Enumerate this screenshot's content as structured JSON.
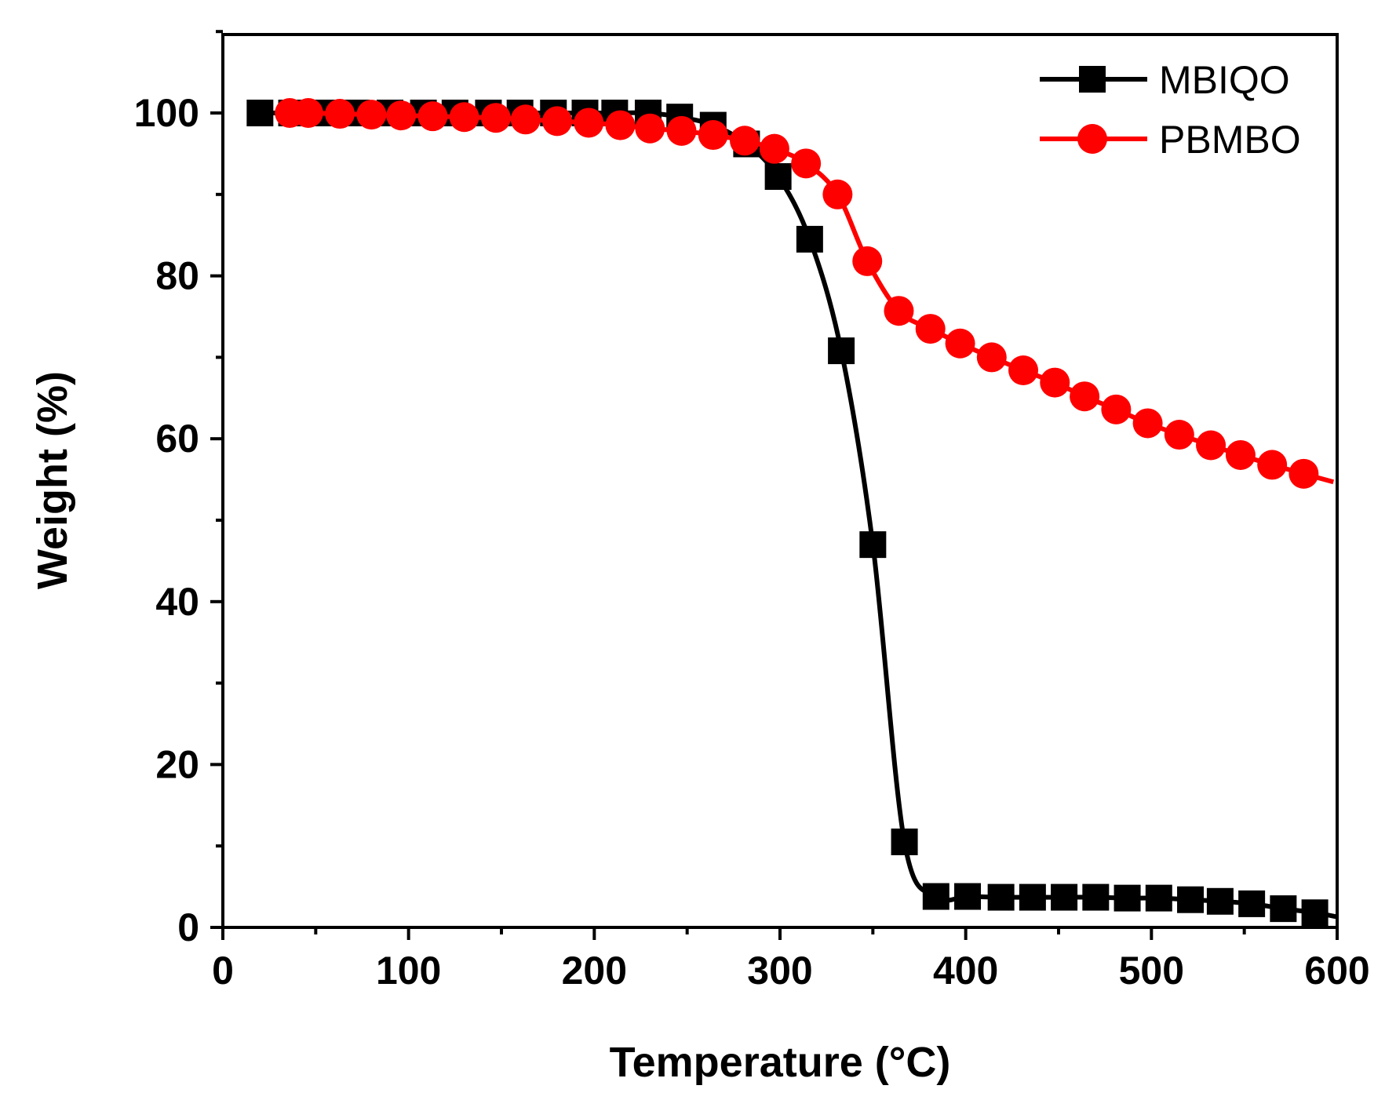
{
  "chart_data": {
    "type": "line",
    "title": "",
    "xlabel": "Temperature (°C)",
    "ylabel": "Weight (%)",
    "xlim": [
      0,
      600
    ],
    "ylim": [
      0,
      110
    ],
    "xticks": [
      0,
      100,
      200,
      300,
      400,
      500,
      600
    ],
    "yticks": [
      0,
      20,
      40,
      60,
      80,
      100
    ],
    "xtick_labels": [
      "0",
      "100",
      "200",
      "300",
      "400",
      "500",
      "600"
    ],
    "ytick_labels": [
      "0",
      "20",
      "40",
      "60",
      "80",
      "100"
    ],
    "grid": false,
    "legend_position": "top-right",
    "series": [
      {
        "name": "MBIQO",
        "color": "#000000",
        "marker": "square",
        "x": [
          20,
          37,
          55,
          72,
          90,
          108,
          125,
          143,
          160,
          178,
          195,
          211,
          229,
          246,
          264,
          282,
          299,
          316,
          333,
          350,
          367,
          384,
          401,
          419,
          436,
          453,
          470,
          487,
          504,
          521,
          537,
          554,
          571,
          588,
          600
        ],
        "y": [
          100,
          100,
          100,
          100,
          100,
          100,
          100,
          100,
          100,
          100,
          100,
          100,
          100,
          99.5,
          98.5,
          96.2,
          92.2,
          84.5,
          70.8,
          47,
          10.5,
          3.8,
          3.8,
          3.7,
          3.7,
          3.7,
          3.7,
          3.6,
          3.6,
          3.4,
          3.2,
          2.9,
          2.3,
          1.8,
          1.3
        ]
      },
      {
        "name": "PBMBO",
        "color": "#ff0000",
        "marker": "circle",
        "x": [
          36,
          46,
          63,
          80,
          96,
          113,
          130,
          147,
          163,
          180,
          197,
          214,
          230,
          247,
          264,
          281,
          297,
          314,
          331,
          347,
          364,
          381,
          397,
          414,
          431,
          448,
          464,
          481,
          498,
          515,
          532,
          548,
          565,
          582,
          598
        ],
        "y": [
          100,
          100,
          99.9,
          99.8,
          99.7,
          99.6,
          99.5,
          99.4,
          99.2,
          99,
          98.8,
          98.5,
          98.1,
          97.8,
          97.3,
          96.6,
          95.6,
          93.8,
          90,
          81.8,
          75.7,
          73.5,
          71.7,
          70,
          68.4,
          66.9,
          65.2,
          63.6,
          61.9,
          60.5,
          59.2,
          58,
          56.8,
          55.7,
          54.7
        ]
      }
    ]
  }
}
